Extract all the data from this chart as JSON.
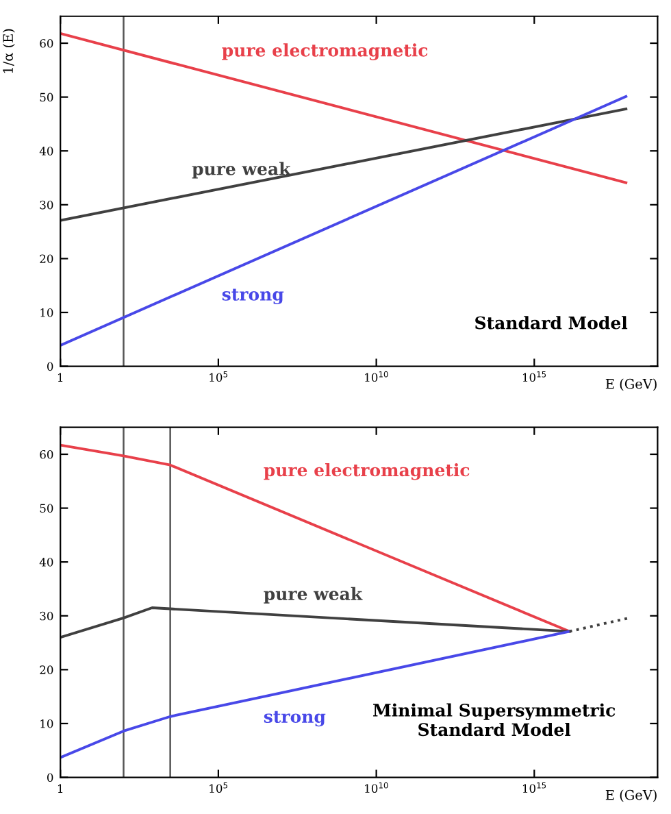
{
  "chart_data": [
    {
      "type": "line",
      "xlabel": "E (GeV)",
      "ylabel": "1/α (E)",
      "log": "x",
      "xlim": [
        1,
        8e+18
      ],
      "xticks": [
        {
          "value": 1,
          "label": "1"
        },
        {
          "value": 100000.0,
          "label": "10$^{5}$"
        },
        {
          "value": 10000000000.0,
          "label": "10$^{10}$"
        },
        {
          "value": 1000000000000000.0,
          "label": "10$^{15}$"
        }
      ],
      "ylim": [
        0,
        65
      ],
      "yticks": [
        0,
        10,
        20,
        30,
        40,
        50,
        60
      ],
      "grid": false,
      "legend": false,
      "series": [
        {
          "name": "pure electromagnetic",
          "color": "#e8404a",
          "x": [
            1,
            8e+17
          ],
          "values": [
            61.8,
            34.1
          ]
        },
        {
          "name": "pure weak",
          "color": "#404040",
          "x": [
            1,
            8e+17
          ],
          "values": [
            27.1,
            47.8
          ]
        },
        {
          "name": "strong",
          "color": "#4848e8",
          "x": [
            1,
            8e+17
          ],
          "values": [
            3.9,
            50.1
          ]
        }
      ],
      "ref_lines": [
        {
          "axis": "x",
          "value": 100,
          "color": "#555555"
        }
      ],
      "annotations": [
        "Standard Model"
      ]
    },
    {
      "type": "line",
      "xlabel": "E (GeV)",
      "log": "x",
      "xlim": [
        1,
        8e+18
      ],
      "xticks": [
        {
          "value": 1,
          "label": "1"
        },
        {
          "value": 100000.0,
          "label": "10$^{5}$"
        },
        {
          "value": 10000000000.0,
          "label": "10$^{10}$"
        },
        {
          "value": 1000000000000000.0,
          "label": "10$^{15}$"
        }
      ],
      "ylim": [
        0,
        65
      ],
      "yticks": [
        0,
        10,
        20,
        30,
        40,
        50,
        60
      ],
      "grid": false,
      "legend": false,
      "series": [
        {
          "name": "pure electromagnetic",
          "color": "#e8404a",
          "x": [
            1,
            100,
            3000,
            1.3e+16
          ],
          "values": [
            61.7,
            59.7,
            58.0,
            27.1
          ]
        },
        {
          "name": "pure weak",
          "color": "#404040",
          "x": [
            1,
            100,
            800,
            3000,
            1.3e+16
          ],
          "values": [
            26.0,
            29.6,
            31.5,
            31.3,
            27.1
          ]
        },
        {
          "name": "strong",
          "color": "#4848e8",
          "x": [
            1,
            100,
            3000,
            1.3e+16
          ],
          "values": [
            3.7,
            8.6,
            11.3,
            27.1
          ]
        },
        {
          "color": "#404040",
          "line_style": "dotted",
          "x": [
            1.3e+16,
            1e+18
          ],
          "values": [
            27.1,
            29.6
          ]
        }
      ],
      "ref_lines": [
        {
          "axis": "x",
          "value": 100,
          "color": "#555555"
        },
        {
          "axis": "x",
          "value": 3000,
          "color": "#555555"
        }
      ],
      "annotations": [
        "Minimal Supersymmetric\nStandard Model"
      ]
    }
  ]
}
